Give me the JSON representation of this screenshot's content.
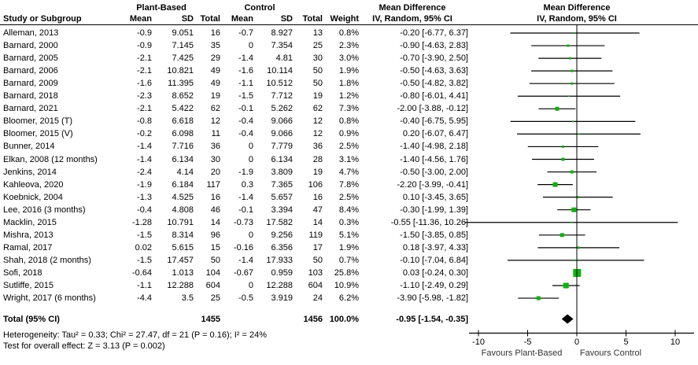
{
  "header": {
    "study": "Study or Subgroup",
    "group1": "Plant-Based",
    "group2": "Control",
    "mean": "Mean",
    "sd": "SD",
    "total": "Total",
    "weight": "Weight",
    "md": "Mean Difference",
    "iv": "IV, Random, 95% CI"
  },
  "chart_data": {
    "type": "forest",
    "effect_measure": "Mean Difference, IV, Random, 95% CI",
    "studies": [
      {
        "name": "Alleman, 2013",
        "pb_mean": "-0.9",
        "pb_sd": "9.051",
        "pb_total": "16",
        "c_mean": "-0.7",
        "c_sd": "8.927",
        "c_total": "13",
        "weight_pct": 0.8,
        "est": -0.2,
        "lo": -6.77,
        "hi": 6.37
      },
      {
        "name": "Barnard, 2000",
        "pb_mean": "-0.9",
        "pb_sd": "7.145",
        "pb_total": "35",
        "c_mean": "0",
        "c_sd": "7.354",
        "c_total": "25",
        "weight_pct": 2.3,
        "est": -0.9,
        "lo": -4.63,
        "hi": 2.83
      },
      {
        "name": "Barnard, 2005",
        "pb_mean": "-2.1",
        "pb_sd": "7.425",
        "pb_total": "29",
        "c_mean": "-1.4",
        "c_sd": "4.81",
        "c_total": "30",
        "weight_pct": 3.0,
        "est": -0.7,
        "lo": -3.9,
        "hi": 2.5
      },
      {
        "name": "Barnard, 2006",
        "pb_mean": "-2.1",
        "pb_sd": "10.821",
        "pb_total": "49",
        "c_mean": "-1.6",
        "c_sd": "10.114",
        "c_total": "50",
        "weight_pct": 1.9,
        "est": -0.5,
        "lo": -4.63,
        "hi": 3.63
      },
      {
        "name": "Barnard, 2009",
        "pb_mean": "-1.6",
        "pb_sd": "11.395",
        "pb_total": "49",
        "c_mean": "-1.1",
        "c_sd": "10.512",
        "c_total": "50",
        "weight_pct": 1.8,
        "est": -0.5,
        "lo": -4.82,
        "hi": 3.82
      },
      {
        "name": "Barnard, 2018",
        "pb_mean": "-2.3",
        "pb_sd": "8.652",
        "pb_total": "19",
        "c_mean": "-1.5",
        "c_sd": "7.712",
        "c_total": "19",
        "weight_pct": 1.2,
        "est": -0.8,
        "lo": -6.01,
        "hi": 4.41
      },
      {
        "name": "Barnard, 2021",
        "pb_mean": "-2.1",
        "pb_sd": "5.422",
        "pb_total": "62",
        "c_mean": "-0.1",
        "c_sd": "5.262",
        "c_total": "62",
        "weight_pct": 7.3,
        "est": -2.0,
        "lo": -3.88,
        "hi": -0.12
      },
      {
        "name": "Bloomer, 2015 (T)",
        "pb_mean": "-0.8",
        "pb_sd": "6.618",
        "pb_total": "12",
        "c_mean": "-0.4",
        "c_sd": "9.066",
        "c_total": "12",
        "weight_pct": 0.8,
        "est": -0.4,
        "lo": -6.75,
        "hi": 5.95
      },
      {
        "name": "Bloomer, 2015 (V)",
        "pb_mean": "-0.2",
        "pb_sd": "6.098",
        "pb_total": "11",
        "c_mean": "-0.4",
        "c_sd": "9.066",
        "c_total": "12",
        "weight_pct": 0.9,
        "est": 0.2,
        "lo": -6.07,
        "hi": 6.47
      },
      {
        "name": "Bunner, 2014",
        "pb_mean": "-1.4",
        "pb_sd": "7.716",
        "pb_total": "36",
        "c_mean": "0",
        "c_sd": "7.779",
        "c_total": "36",
        "weight_pct": 2.5,
        "est": -1.4,
        "lo": -4.98,
        "hi": 2.18
      },
      {
        "name": "Elkan, 2008 (12 months)",
        "pb_mean": "-1.4",
        "pb_sd": "6.134",
        "pb_total": "30",
        "c_mean": "0",
        "c_sd": "6.134",
        "c_total": "28",
        "weight_pct": 3.1,
        "est": -1.4,
        "lo": -4.56,
        "hi": 1.76
      },
      {
        "name": "Jenkins, 2014",
        "pb_mean": "-2.4",
        "pb_sd": "4.14",
        "pb_total": "20",
        "c_mean": "-1.9",
        "c_sd": "3.809",
        "c_total": "19",
        "weight_pct": 4.7,
        "est": -0.5,
        "lo": -3.0,
        "hi": 2.0
      },
      {
        "name": "Kahleova, 2020",
        "pb_mean": "-1.9",
        "pb_sd": "6.184",
        "pb_total": "117",
        "c_mean": "0.3",
        "c_sd": "7.365",
        "c_total": "106",
        "weight_pct": 7.8,
        "est": -2.2,
        "lo": -3.99,
        "hi": -0.41
      },
      {
        "name": "Koebnick, 2004",
        "pb_mean": "-1.3",
        "pb_sd": "4.525",
        "pb_total": "16",
        "c_mean": "-1.4",
        "c_sd": "5.657",
        "c_total": "16",
        "weight_pct": 2.5,
        "est": 0.1,
        "lo": -3.45,
        "hi": 3.65
      },
      {
        "name": "Lee, 2016 (3 months)",
        "pb_mean": "-0.4",
        "pb_sd": "4.808",
        "pb_total": "46",
        "c_mean": "-0.1",
        "c_sd": "3.394",
        "c_total": "47",
        "weight_pct": 8.4,
        "est": -0.3,
        "lo": -1.99,
        "hi": 1.39
      },
      {
        "name": "Macklin, 2015",
        "pb_mean": "-1.28",
        "pb_sd": "10.791",
        "pb_total": "14",
        "c_mean": "-0.73",
        "c_sd": "17.582",
        "c_total": "14",
        "weight_pct": 0.3,
        "est": -0.55,
        "lo": -11.36,
        "hi": 10.26
      },
      {
        "name": "Mishra, 2013",
        "pb_mean": "-1.5",
        "pb_sd": "8.314",
        "pb_total": "96",
        "c_mean": "0",
        "c_sd": "9.256",
        "c_total": "119",
        "weight_pct": 5.1,
        "est": -1.5,
        "lo": -3.85,
        "hi": 0.85
      },
      {
        "name": "Ramal, 2017",
        "pb_mean": "0.02",
        "pb_sd": "5.615",
        "pb_total": "15",
        "c_mean": "-0.16",
        "c_sd": "6.356",
        "c_total": "17",
        "weight_pct": 1.9,
        "est": 0.18,
        "lo": -3.97,
        "hi": 4.33
      },
      {
        "name": "Shah, 2018 (2 months)",
        "pb_mean": "-1.5",
        "pb_sd": "17.457",
        "pb_total": "50",
        "c_mean": "-1.4",
        "c_sd": "17.933",
        "c_total": "50",
        "weight_pct": 0.7,
        "est": -0.1,
        "lo": -7.04,
        "hi": 6.84
      },
      {
        "name": "Sofi, 2018",
        "pb_mean": "-0.64",
        "pb_sd": "1.013",
        "pb_total": "104",
        "c_mean": "-0.67",
        "c_sd": "0.959",
        "c_total": "103",
        "weight_pct": 25.8,
        "est": 0.03,
        "lo": -0.24,
        "hi": 0.3
      },
      {
        "name": "Sutliffe, 2015",
        "pb_mean": "-1.1",
        "pb_sd": "12.288",
        "pb_total": "604",
        "c_mean": "0",
        "c_sd": "12.288",
        "c_total": "604",
        "weight_pct": 10.9,
        "est": -1.1,
        "lo": -2.49,
        "hi": 0.29
      },
      {
        "name": "Wright, 2017 (6 months)",
        "pb_mean": "-4.4",
        "pb_sd": "3.5",
        "pb_total": "25",
        "c_mean": "-0.5",
        "c_sd": "3.919",
        "c_total": "24",
        "weight_pct": 6.2,
        "est": -3.9,
        "lo": -5.98,
        "hi": -1.82
      }
    ],
    "total": {
      "label": "Total (95% CI)",
      "pb_total": "1455",
      "c_total": "1456",
      "weight": "100.0%",
      "md": "-0.95 [-1.54, -0.35]",
      "est": -0.95,
      "lo": -1.54,
      "hi": -0.35
    },
    "footer": {
      "heterogeneity": "Heterogeneity: Tau² = 0.33; Chi² = 27.47, df = 21 (P = 0.16); I² = 24%",
      "overall_effect": "Test for overall effect: Z = 3.13 (P = 0.002)"
    },
    "axis": {
      "min": -10,
      "max": 10,
      "ticks": [
        -10,
        -5,
        0,
        5,
        10
      ],
      "favours_left": "Favours Plant-Based",
      "favours_right": "Favours Control"
    },
    "colors": {
      "marker": "#0bb30b",
      "diamond": "#000000",
      "line": "#000000"
    }
  }
}
